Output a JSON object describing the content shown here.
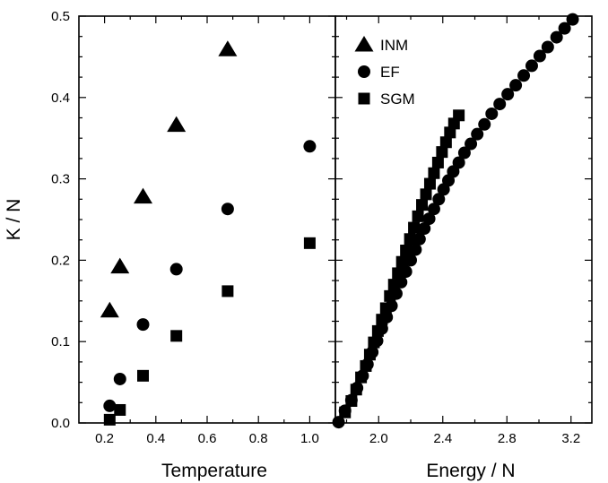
{
  "chart_data": [
    {
      "type": "scatter",
      "panel": "left",
      "xlabel": "Temperature",
      "ylabel": "K / N",
      "xlim": [
        0.1,
        1.1
      ],
      "ylim": [
        0.0,
        0.5
      ],
      "xticks": [
        0.2,
        0.4,
        0.6,
        0.8,
        1.0
      ],
      "xtick_labels": [
        "0.2",
        "0.4",
        "0.6",
        "0.8",
        "1.0"
      ],
      "yticks": [
        0.0,
        0.1,
        0.2,
        0.3,
        0.4,
        0.5
      ],
      "ytick_labels": [
        "0.0",
        "0.1",
        "0.2",
        "0.3",
        "0.4",
        "0.5"
      ],
      "series": [
        {
          "name": "INM",
          "marker": "triangle",
          "x": [
            0.22,
            0.26,
            0.35,
            0.48,
            0.68
          ],
          "y": [
            0.138,
            0.192,
            0.278,
            0.366,
            0.459
          ]
        },
        {
          "name": "EF",
          "marker": "circle",
          "x": [
            0.22,
            0.26,
            0.35,
            0.48,
            0.68,
            1.0
          ],
          "y": [
            0.021,
            0.054,
            0.121,
            0.189,
            0.263,
            0.34
          ]
        },
        {
          "name": "SGM",
          "marker": "square",
          "x": [
            0.22,
            0.26,
            0.35,
            0.48,
            0.68,
            1.0
          ],
          "y": [
            0.004,
            0.016,
            0.058,
            0.107,
            0.162,
            0.221
          ]
        }
      ]
    },
    {
      "type": "scatter",
      "panel": "right",
      "xlabel": "Energy / N",
      "xlim": [
        1.73,
        3.33
      ],
      "ylim": [
        0.0,
        0.5
      ],
      "xticks": [
        2.0,
        2.4,
        2.8,
        3.2
      ],
      "xtick_labels": [
        "2.0",
        "2.4",
        "2.8",
        "3.2"
      ],
      "legend": {
        "position": "top-left",
        "entries": [
          "INM",
          "EF",
          "SGM"
        ]
      },
      "series": [
        {
          "name": "EF",
          "marker": "circle",
          "x": [
            1.75,
            1.79,
            1.83,
            1.865,
            1.9,
            1.93,
            1.96,
            1.99,
            2.02,
            2.05,
            2.08,
            2.11,
            2.14,
            2.17,
            2.2,
            2.23,
            2.255,
            2.285,
            2.315,
            2.345,
            2.375,
            2.405,
            2.435,
            2.465,
            2.5,
            2.535,
            2.575,
            2.615,
            2.66,
            2.705,
            2.755,
            2.805,
            2.855,
            2.905,
            2.955,
            3.005,
            3.055,
            3.11,
            3.16,
            3.21
          ],
          "y": [
            0.001,
            0.015,
            0.028,
            0.043,
            0.058,
            0.072,
            0.087,
            0.101,
            0.116,
            0.13,
            0.144,
            0.159,
            0.173,
            0.186,
            0.2,
            0.213,
            0.226,
            0.239,
            0.251,
            0.263,
            0.275,
            0.287,
            0.298,
            0.309,
            0.32,
            0.332,
            0.343,
            0.355,
            0.367,
            0.38,
            0.392,
            0.404,
            0.415,
            0.427,
            0.439,
            0.451,
            0.462,
            0.474,
            0.485,
            0.496
          ]
        },
        {
          "name": "SGM",
          "marker": "square",
          "x": [
            1.79,
            1.83,
            1.86,
            1.89,
            1.92,
            1.945,
            1.97,
            1.995,
            2.02,
            2.045,
            2.07,
            2.095,
            2.12,
            2.145,
            2.17,
            2.195,
            2.22,
            2.245,
            2.27,
            2.295,
            2.32,
            2.345,
            2.37,
            2.395,
            2.42,
            2.445,
            2.47,
            2.5
          ],
          "y": [
            0.013,
            0.027,
            0.041,
            0.056,
            0.07,
            0.084,
            0.099,
            0.113,
            0.127,
            0.141,
            0.156,
            0.17,
            0.184,
            0.198,
            0.212,
            0.226,
            0.24,
            0.254,
            0.268,
            0.281,
            0.294,
            0.307,
            0.32,
            0.333,
            0.345,
            0.357,
            0.368,
            0.378
          ]
        }
      ]
    }
  ]
}
